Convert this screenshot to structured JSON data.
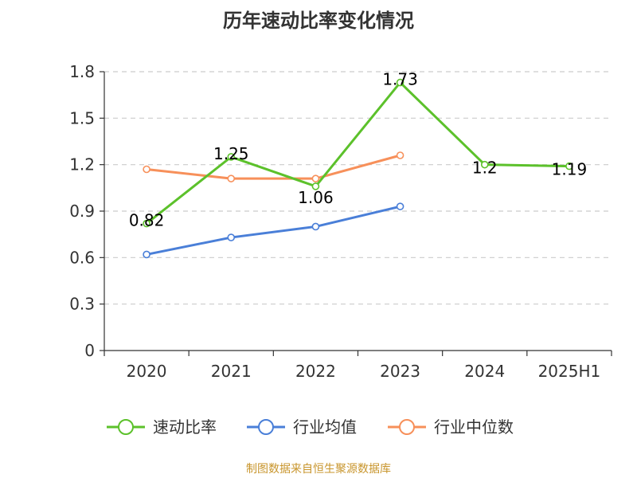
{
  "title": "历年速动比率变化情况",
  "source": "制图数据来自恒生聚源数据库",
  "chart_data": {
    "type": "line",
    "categories": [
      "2020",
      "2021",
      "2022",
      "2023",
      "2024",
      "2025H1"
    ],
    "ylim": [
      0,
      1.8
    ],
    "yticks": [
      "0",
      "0.3",
      "0.6",
      "0.9",
      "1.2",
      "1.5",
      "1.8"
    ],
    "grid": true,
    "legend_position": "bottom",
    "series": [
      {
        "name": "速动比率",
        "color": "#5cc12b",
        "values": [
          0.82,
          1.25,
          1.06,
          1.73,
          1.2,
          1.19
        ],
        "labels": [
          "0.82",
          "1.25",
          "1.06",
          "1.73",
          "1.2",
          "1.19"
        ]
      },
      {
        "name": "行业均值",
        "color": "#4a7fd8",
        "values": [
          0.62,
          0.73,
          0.8,
          0.93,
          null,
          null
        ]
      },
      {
        "name": "行业中位数",
        "color": "#f7905a",
        "values": [
          1.17,
          1.11,
          1.11,
          1.26,
          null,
          null
        ]
      }
    ]
  }
}
